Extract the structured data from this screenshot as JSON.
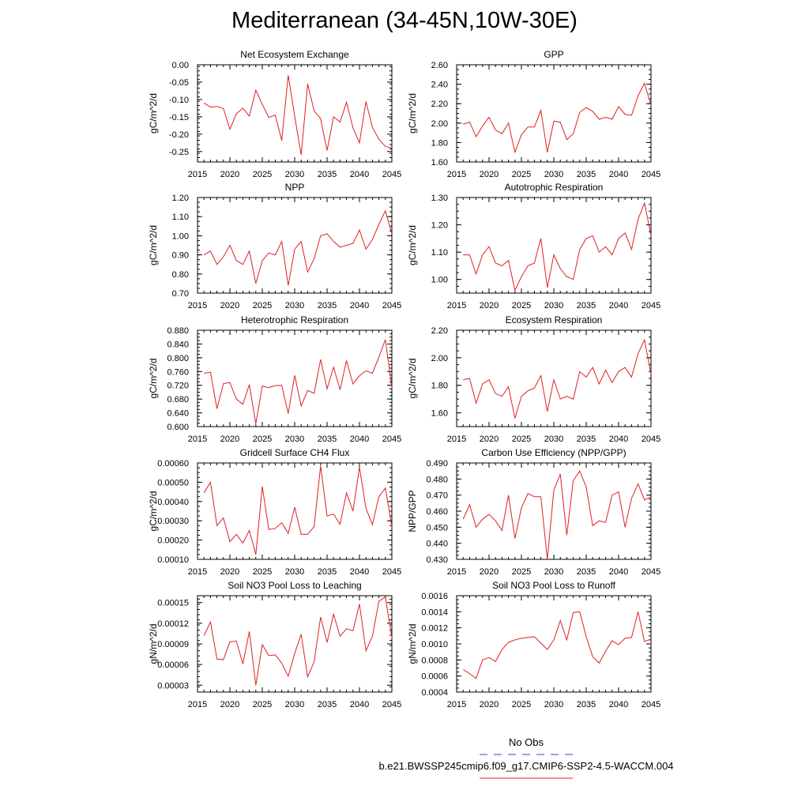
{
  "figure": {
    "title": "Mediterranean (34-45N,10W-30E)",
    "legend": [
      {
        "label": "No Obs",
        "color": "#4040d0",
        "dash": "dashed"
      },
      {
        "label": "b.e21.BWSSP245cmip6.f09_g17.CMIP6-SSP2-4.5-WACCM.004",
        "color": "#e02020",
        "dash": "solid"
      }
    ]
  },
  "chart_data": [
    {
      "type": "line",
      "title": "Net Ecosystem Exchange",
      "ylabel": "gC/m^2/d",
      "xlim": [
        2015,
        2045
      ],
      "ylim": [
        -0.28,
        0.0
      ],
      "xticks": [
        "2015",
        "2020",
        "2025",
        "2030",
        "2035",
        "2040",
        "2045"
      ],
      "yticks": [
        "0.00",
        "-0.05",
        "-0.10",
        "-0.15",
        "-0.20",
        "-0.25"
      ],
      "x": [
        2016,
        2017,
        2018,
        2019,
        2020,
        2021,
        2022,
        2023,
        2024,
        2025,
        2026,
        2027,
        2028,
        2029,
        2030,
        2031,
        2032,
        2033,
        2034,
        2035,
        2036,
        2037,
        2038,
        2039,
        2040,
        2041,
        2042,
        2043,
        2044,
        2045
      ],
      "series": [
        {
          "color": "#e02020",
          "values": [
            -0.11,
            -0.122,
            -0.12,
            -0.126,
            -0.186,
            -0.141,
            -0.125,
            -0.148,
            -0.073,
            -0.114,
            -0.152,
            -0.145,
            -0.218,
            -0.03,
            -0.148,
            -0.26,
            -0.055,
            -0.133,
            -0.155,
            -0.247,
            -0.15,
            -0.165,
            -0.108,
            -0.182,
            -0.225,
            -0.106,
            -0.18,
            -0.215,
            -0.235,
            -0.24
          ]
        }
      ]
    },
    {
      "type": "line",
      "title": "GPP",
      "ylabel": "gC/m^2/d",
      "xlim": [
        2015,
        2045
      ],
      "ylim": [
        1.6,
        2.6
      ],
      "xticks": [
        "2015",
        "2020",
        "2025",
        "2030",
        "2035",
        "2040",
        "2045"
      ],
      "yticks": [
        "1.60",
        "1.80",
        "2.00",
        "2.20",
        "2.40",
        "2.60"
      ],
      "x": [
        2016,
        2017,
        2018,
        2019,
        2020,
        2021,
        2022,
        2023,
        2024,
        2025,
        2026,
        2027,
        2028,
        2029,
        2030,
        2031,
        2032,
        2033,
        2034,
        2035,
        2036,
        2037,
        2038,
        2039,
        2040,
        2041,
        2042,
        2043,
        2044,
        2045
      ],
      "series": [
        {
          "color": "#e02020",
          "values": [
            1.99,
            2.01,
            1.86,
            1.97,
            2.06,
            1.93,
            1.89,
            2.0,
            1.7,
            1.88,
            1.96,
            1.96,
            2.13,
            1.7,
            2.02,
            2.01,
            1.83,
            1.89,
            2.11,
            2.16,
            2.12,
            2.04,
            2.06,
            2.04,
            2.17,
            2.09,
            2.08,
            2.28,
            2.41,
            2.18
          ]
        }
      ]
    },
    {
      "type": "line",
      "title": "NPP",
      "ylabel": "gC/m^2/d",
      "xlim": [
        2015,
        2045
      ],
      "ylim": [
        0.7,
        1.2
      ],
      "xticks": [
        "2015",
        "2020",
        "2025",
        "2030",
        "2035",
        "2040",
        "2045"
      ],
      "yticks": [
        "0.70",
        "0.80",
        "0.90",
        "1.00",
        "1.10",
        "1.20"
      ],
      "x": [
        2016,
        2017,
        2018,
        2019,
        2020,
        2021,
        2022,
        2023,
        2024,
        2025,
        2026,
        2027,
        2028,
        2029,
        2030,
        2031,
        2032,
        2033,
        2034,
        2035,
        2036,
        2037,
        2038,
        2039,
        2040,
        2041,
        2042,
        2043,
        2044,
        2045
      ],
      "series": [
        {
          "color": "#e02020",
          "values": [
            0.9,
            0.92,
            0.85,
            0.89,
            0.95,
            0.87,
            0.85,
            0.92,
            0.75,
            0.87,
            0.91,
            0.9,
            0.97,
            0.74,
            0.93,
            0.97,
            0.81,
            0.88,
            1.0,
            1.01,
            0.97,
            0.94,
            0.95,
            0.96,
            1.03,
            0.93,
            0.98,
            1.06,
            1.13,
            1.01
          ]
        }
      ]
    },
    {
      "type": "line",
      "title": "Autotrophic Respiration",
      "ylabel": "gC/m^2/d",
      "xlim": [
        2015,
        2045
      ],
      "ylim": [
        0.95,
        1.3
      ],
      "xticks": [
        "2015",
        "2020",
        "2025",
        "2030",
        "2035",
        "2040",
        "2045"
      ],
      "yticks": [
        "1.00",
        "1.10",
        "1.20",
        "1.30"
      ],
      "x": [
        2016,
        2017,
        2018,
        2019,
        2020,
        2021,
        2022,
        2023,
        2024,
        2025,
        2026,
        2027,
        2028,
        2029,
        2030,
        2031,
        2032,
        2033,
        2034,
        2035,
        2036,
        2037,
        2038,
        2039,
        2040,
        2041,
        2042,
        2043,
        2044,
        2045
      ],
      "series": [
        {
          "color": "#e02020",
          "values": [
            1.09,
            1.09,
            1.02,
            1.09,
            1.12,
            1.06,
            1.05,
            1.07,
            0.96,
            1.01,
            1.05,
            1.06,
            1.15,
            0.97,
            1.09,
            1.04,
            1.01,
            1.0,
            1.11,
            1.15,
            1.16,
            1.1,
            1.12,
            1.09,
            1.15,
            1.17,
            1.11,
            1.22,
            1.28,
            1.16
          ]
        }
      ]
    },
    {
      "type": "line",
      "title": "Heterotrophic Respiration",
      "ylabel": "gC/m^2/d",
      "xlim": [
        2015,
        2045
      ],
      "ylim": [
        0.6,
        0.88
      ],
      "xticks": [
        "2015",
        "2020",
        "2025",
        "2030",
        "2035",
        "2040",
        "2045"
      ],
      "yticks": [
        "0.600",
        "0.640",
        "0.680",
        "0.720",
        "0.760",
        "0.800",
        "0.840",
        "0.880"
      ],
      "x": [
        2016,
        2017,
        2018,
        2019,
        2020,
        2021,
        2022,
        2023,
        2024,
        2025,
        2026,
        2027,
        2028,
        2029,
        2030,
        2031,
        2032,
        2033,
        2034,
        2035,
        2036,
        2037,
        2038,
        2039,
        2040,
        2041,
        2042,
        2043,
        2044,
        2045
      ],
      "series": [
        {
          "color": "#e02020",
          "values": [
            0.755,
            0.758,
            0.652,
            0.725,
            0.728,
            0.68,
            0.665,
            0.722,
            0.608,
            0.718,
            0.713,
            0.719,
            0.72,
            0.638,
            0.749,
            0.66,
            0.705,
            0.697,
            0.795,
            0.71,
            0.773,
            0.707,
            0.792,
            0.724,
            0.748,
            0.762,
            0.755,
            0.802,
            0.853,
            0.712
          ]
        }
      ]
    },
    {
      "type": "line",
      "title": "Ecosystem Respiration",
      "ylabel": "gC/m^2/d",
      "xlim": [
        2015,
        2045
      ],
      "ylim": [
        1.5,
        2.2
      ],
      "xticks": [
        "2015",
        "2020",
        "2025",
        "2030",
        "2035",
        "2040",
        "2045"
      ],
      "yticks": [
        "1.60",
        "1.80",
        "2.00",
        "2.20"
      ],
      "x": [
        2016,
        2017,
        2018,
        2019,
        2020,
        2021,
        2022,
        2023,
        2024,
        2025,
        2026,
        2027,
        2028,
        2029,
        2030,
        2031,
        2032,
        2033,
        2034,
        2035,
        2036,
        2037,
        2038,
        2039,
        2040,
        2041,
        2042,
        2043,
        2044,
        2045
      ],
      "series": [
        {
          "color": "#e02020",
          "values": [
            1.84,
            1.85,
            1.67,
            1.81,
            1.84,
            1.74,
            1.72,
            1.79,
            1.56,
            1.72,
            1.76,
            1.78,
            1.87,
            1.61,
            1.84,
            1.7,
            1.72,
            1.7,
            1.9,
            1.86,
            1.93,
            1.81,
            1.91,
            1.82,
            1.9,
            1.93,
            1.86,
            2.03,
            2.13,
            1.88
          ]
        }
      ]
    },
    {
      "type": "line",
      "title": "Gridcell Surface CH4 Flux",
      "ylabel": "gC/m^2/d",
      "xlim": [
        2015,
        2045
      ],
      "ylim": [
        0.0001,
        0.0006
      ],
      "xticks": [
        "2015",
        "2020",
        "2025",
        "2030",
        "2035",
        "2040",
        "2045"
      ],
      "yticks": [
        "0.00010",
        "0.00020",
        "0.00030",
        "0.00040",
        "0.00050",
        "0.00060"
      ],
      "x": [
        2016,
        2017,
        2018,
        2019,
        2020,
        2021,
        2022,
        2023,
        2024,
        2025,
        2026,
        2027,
        2028,
        2029,
        2030,
        2031,
        2032,
        2033,
        2034,
        2035,
        2036,
        2037,
        2038,
        2039,
        2040,
        2041,
        2042,
        2043,
        2044,
        2045
      ],
      "series": [
        {
          "color": "#e02020",
          "values": [
            0.000445,
            0.0005,
            0.000275,
            0.000315,
            0.000192,
            0.00023,
            0.000185,
            0.00025,
            0.000125,
            0.000478,
            0.000255,
            0.00026,
            0.00029,
            0.000235,
            0.00037,
            0.00023,
            0.00023,
            0.00027,
            0.000585,
            0.000325,
            0.000335,
            0.000282,
            0.000445,
            0.00035,
            0.000578,
            0.000365,
            0.00028,
            0.000425,
            0.00047,
            0.00027
          ]
        }
      ]
    },
    {
      "type": "line",
      "title": "Carbon Use Efficiency (NPP/GPP)",
      "ylabel": "NPP/GPP",
      "xlim": [
        2015,
        2045
      ],
      "ylim": [
        0.43,
        0.49
      ],
      "xticks": [
        "2015",
        "2020",
        "2025",
        "2030",
        "2035",
        "2040",
        "2045"
      ],
      "yticks": [
        "0.430",
        "0.440",
        "0.450",
        "0.460",
        "0.470",
        "0.480",
        "0.490"
      ],
      "x": [
        2016,
        2017,
        2018,
        2019,
        2020,
        2021,
        2022,
        2023,
        2024,
        2025,
        2026,
        2027,
        2028,
        2029,
        2030,
        2031,
        2032,
        2033,
        2034,
        2035,
        2036,
        2037,
        2038,
        2039,
        2040,
        2041,
        2042,
        2043,
        2044,
        2045
      ],
      "series": [
        {
          "color": "#e02020",
          "values": [
            0.455,
            0.464,
            0.45,
            0.455,
            0.458,
            0.454,
            0.448,
            0.47,
            0.443,
            0.462,
            0.471,
            0.469,
            0.469,
            0.43,
            0.473,
            0.483,
            0.445,
            0.479,
            0.485,
            0.475,
            0.451,
            0.454,
            0.453,
            0.47,
            0.472,
            0.45,
            0.468,
            0.477,
            0.467,
            0.469
          ]
        }
      ]
    },
    {
      "type": "line",
      "title": "Soil NO3 Pool Loss to Leaching",
      "ylabel": "gN/m^2/d",
      "xlim": [
        2015,
        2045
      ],
      "ylim": [
        2e-05,
        0.00016
      ],
      "xticks": [
        "2015",
        "2020",
        "2025",
        "2030",
        "2035",
        "2040",
        "2045"
      ],
      "yticks": [
        "0.00003",
        "0.00006",
        "0.00009",
        "0.00012",
        "0.00015"
      ],
      "x": [
        2016,
        2017,
        2018,
        2019,
        2020,
        2021,
        2022,
        2023,
        2024,
        2025,
        2026,
        2027,
        2028,
        2029,
        2030,
        2031,
        2032,
        2033,
        2034,
        2035,
        2036,
        2037,
        2038,
        2039,
        2040,
        2041,
        2042,
        2043,
        2044,
        2045
      ],
      "series": [
        {
          "color": "#e02020",
          "values": [
            0.000102,
            0.000122,
            6.8e-05,
            6.7e-05,
            9.3e-05,
            9.4e-05,
            6.1e-05,
            0.000108,
            3e-05,
            8.9e-05,
            7.3e-05,
            7.4e-05,
            6.2e-05,
            4.3e-05,
            7.6e-05,
            0.000104,
            4.2e-05,
            6.4e-05,
            0.000129,
            9.2e-05,
            0.000133,
            0.000101,
            0.000112,
            0.000109,
            0.000148,
            8e-05,
            0.000101,
            0.000152,
            0.000158,
            9.9e-05
          ]
        }
      ]
    },
    {
      "type": "line",
      "title": "Soil NO3 Pool Loss to Runoff",
      "ylabel": "gN/m^2/d",
      "xlim": [
        2015,
        2045
      ],
      "ylim": [
        0.0004,
        0.0016
      ],
      "xticks": [
        "2015",
        "2020",
        "2025",
        "2030",
        "2035",
        "2040",
        "2045"
      ],
      "yticks": [
        "0.0004",
        "0.0006",
        "0.0008",
        "0.0010",
        "0.0012",
        "0.0014",
        "0.0016"
      ],
      "x": [
        2016,
        2017,
        2018,
        2019,
        2020,
        2021,
        2022,
        2023,
        2024,
        2025,
        2026,
        2027,
        2028,
        2029,
        2030,
        2031,
        2032,
        2033,
        2034,
        2035,
        2036,
        2037,
        2038,
        2039,
        2040,
        2041,
        2042,
        2043,
        2044,
        2045
      ],
      "series": [
        {
          "color": "#e02020",
          "values": [
            0.00068,
            0.00063,
            0.00057,
            0.0008,
            0.00083,
            0.00078,
            0.00093,
            0.00102,
            0.00105,
            0.00107,
            0.00108,
            0.00109,
            0.00101,
            0.00093,
            0.00105,
            0.00129,
            0.00105,
            0.00139,
            0.0014,
            0.00109,
            0.00084,
            0.00076,
            0.00091,
            0.00104,
            0.00099,
            0.00107,
            0.00108,
            0.0014,
            0.00103,
            0.00106
          ]
        }
      ]
    }
  ]
}
